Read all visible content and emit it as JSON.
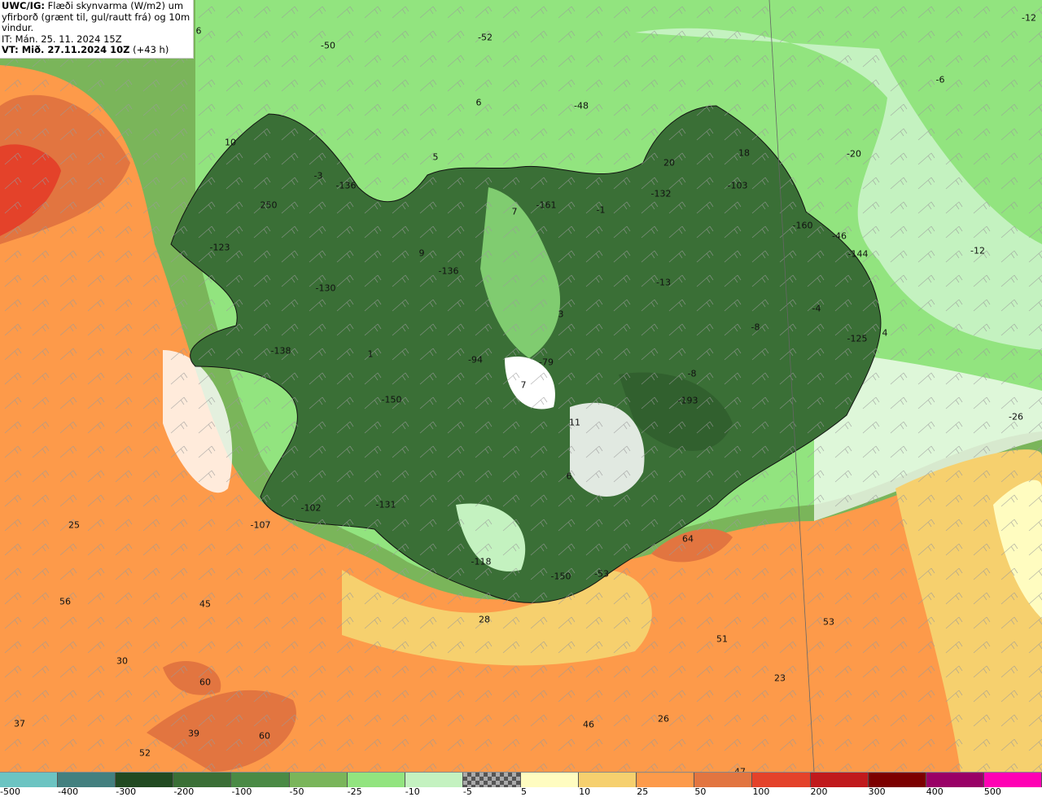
{
  "header": {
    "line1_bold": "UWC/IG:",
    "line1": " Flæði skynvarma (W/m2) um",
    "line2": "yfirborð (grænt til, gul/rautt frá) og 10m vindur.",
    "line3": "IT: Mán. 25. 11. 2024 15Z",
    "line4_bold": "VT: Mið. 27.11.2024 10Z",
    "line4": " (+43 h)"
  },
  "map_labels": [
    "6",
    "-50",
    "-52",
    "6",
    "-48",
    "-12",
    "-6",
    "10",
    "5",
    "20",
    "18",
    "-20",
    "-3",
    "-136",
    "-132",
    "-103",
    "250",
    "7",
    "-161",
    "-1",
    "-160",
    "-46",
    "-12",
    "-123",
    "9",
    "-136",
    "-144",
    "-13",
    "-130",
    "3",
    "-4",
    "-8",
    "4",
    "-125",
    "-138",
    "1",
    "-94",
    "-79",
    "7",
    "-8",
    "-193",
    "-150",
    "11",
    "-26",
    "6",
    "-102",
    "-131",
    "25",
    "-107",
    "64",
    "-118",
    "-150",
    "-53",
    "56",
    "45",
    "28",
    "53",
    "51",
    "30",
    "60",
    "23",
    "37",
    "46",
    "26",
    "39",
    "60",
    "52",
    "47"
  ],
  "legend": {
    "ticks": [
      "-500",
      "-400",
      "-300",
      "-200",
      "-100",
      "-50",
      "-25",
      "-10",
      "-5",
      "5",
      "10",
      "25",
      "50",
      "100",
      "200",
      "300",
      "400",
      "500"
    ],
    "colors": [
      "#6cc4c2",
      "#43807f",
      "#214a21",
      "#3a6f36",
      "#4a8a45",
      "#7ab55a",
      "#92e47f",
      "#c4f2c0",
      "checker",
      "#fffcc0",
      "#f6d06e",
      "#fd9a4a",
      "#e27540",
      "#e4422a",
      "#c0191c",
      "#7c0000",
      "#990066",
      "#ff00b4"
    ]
  }
}
